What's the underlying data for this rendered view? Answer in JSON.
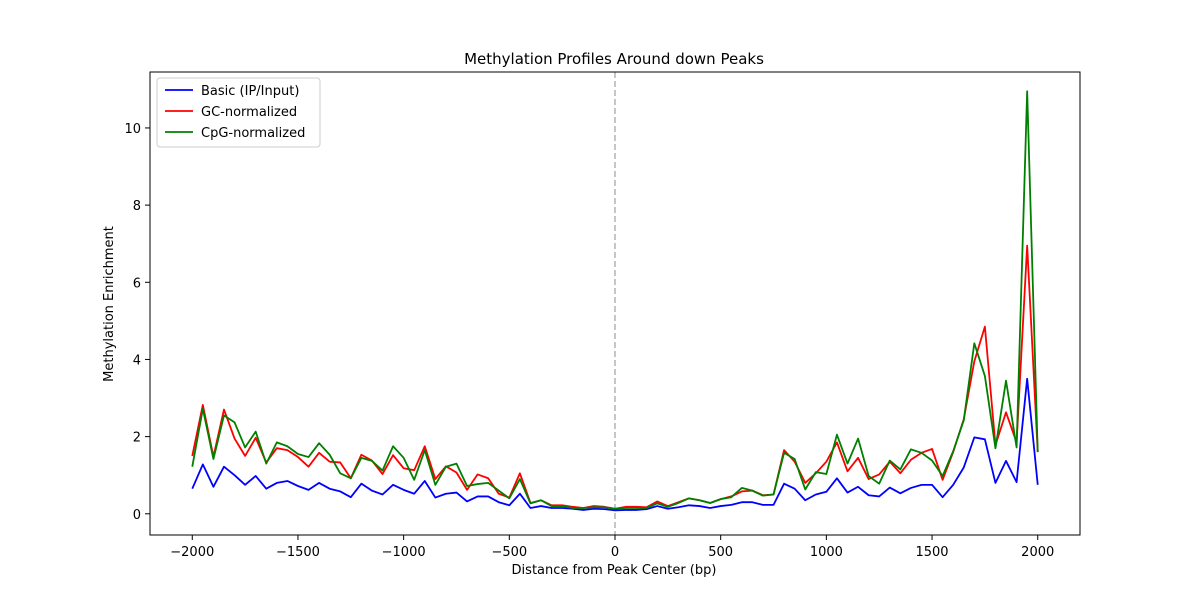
{
  "chart_data": {
    "type": "line",
    "title": "Methylation Profiles Around down Peaks",
    "xlabel": "Distance from Peak Center (bp)",
    "ylabel": "Methylation Enrichment",
    "xlim": [
      -2200,
      2200
    ],
    "ylim": [
      -0.55,
      11.45
    ],
    "xticks": [
      -2000,
      -1500,
      -1000,
      -500,
      0,
      500,
      1000,
      1500,
      2000
    ],
    "xtick_labels": [
      "−2000",
      "−1500",
      "−1000",
      "−500",
      "0",
      "500",
      "1000",
      "1500",
      "2000"
    ],
    "yticks": [
      0,
      2,
      4,
      6,
      8,
      10
    ],
    "ytick_labels": [
      "0",
      "2",
      "4",
      "6",
      "8",
      "10"
    ],
    "grid": false,
    "legend_position": "top-left",
    "center_line": {
      "x": 0,
      "color": "#b3b3b3",
      "style": "dashed"
    },
    "x": [
      -2000,
      -1950,
      -1900,
      -1850,
      -1800,
      -1750,
      -1700,
      -1650,
      -1600,
      -1550,
      -1500,
      -1450,
      -1400,
      -1350,
      -1300,
      -1250,
      -1200,
      -1150,
      -1100,
      -1050,
      -1000,
      -950,
      -900,
      -850,
      -800,
      -750,
      -700,
      -650,
      -600,
      -550,
      -500,
      -450,
      -400,
      -350,
      -300,
      -250,
      -200,
      -150,
      -100,
      -50,
      0,
      50,
      100,
      150,
      200,
      250,
      300,
      350,
      400,
      450,
      500,
      550,
      600,
      650,
      700,
      750,
      800,
      850,
      900,
      950,
      1000,
      1050,
      1100,
      1150,
      1200,
      1250,
      1300,
      1350,
      1400,
      1450,
      1500,
      1550,
      1600,
      1650,
      1700,
      1750,
      1800,
      1850,
      1900,
      1950,
      2000
    ],
    "series": [
      {
        "name": "Basic (IP/Input)",
        "color": "#0000ff",
        "values": [
          0.65,
          1.28,
          0.7,
          1.22,
          1.0,
          0.75,
          0.98,
          0.65,
          0.8,
          0.85,
          0.72,
          0.62,
          0.8,
          0.65,
          0.58,
          0.43,
          0.78,
          0.6,
          0.5,
          0.75,
          0.62,
          0.52,
          0.85,
          0.42,
          0.52,
          0.55,
          0.32,
          0.45,
          0.45,
          0.3,
          0.22,
          0.52,
          0.15,
          0.2,
          0.15,
          0.15,
          0.13,
          0.1,
          0.13,
          0.12,
          0.09,
          0.1,
          0.1,
          0.12,
          0.2,
          0.13,
          0.17,
          0.22,
          0.2,
          0.15,
          0.2,
          0.23,
          0.3,
          0.3,
          0.23,
          0.23,
          0.78,
          0.65,
          0.35,
          0.5,
          0.57,
          0.92,
          0.55,
          0.7,
          0.48,
          0.45,
          0.68,
          0.53,
          0.67,
          0.75,
          0.75,
          0.43,
          0.75,
          1.2,
          1.98,
          1.93,
          0.8,
          1.37,
          0.82,
          3.5,
          0.75
        ]
      },
      {
        "name": "GC-normalized",
        "color": "#ff0000",
        "values": [
          1.5,
          2.82,
          1.48,
          2.7,
          1.95,
          1.5,
          1.97,
          1.33,
          1.7,
          1.65,
          1.47,
          1.22,
          1.58,
          1.35,
          1.33,
          0.92,
          1.53,
          1.38,
          1.03,
          1.52,
          1.18,
          1.13,
          1.75,
          0.9,
          1.23,
          1.07,
          0.62,
          1.02,
          0.92,
          0.52,
          0.42,
          1.05,
          0.28,
          0.35,
          0.22,
          0.22,
          0.18,
          0.15,
          0.2,
          0.18,
          0.13,
          0.18,
          0.18,
          0.17,
          0.32,
          0.2,
          0.3,
          0.4,
          0.35,
          0.28,
          0.38,
          0.45,
          0.58,
          0.6,
          0.48,
          0.5,
          1.65,
          1.35,
          0.8,
          1.05,
          1.35,
          1.85,
          1.1,
          1.45,
          0.9,
          1.02,
          1.35,
          1.05,
          1.4,
          1.58,
          1.68,
          0.88,
          1.6,
          2.45,
          3.95,
          4.85,
          1.78,
          2.63,
          1.85,
          6.95,
          1.6
        ]
      },
      {
        "name": "CpG-normalized",
        "color": "#008000",
        "values": [
          1.22,
          2.72,
          1.42,
          2.55,
          2.37,
          1.72,
          2.13,
          1.3,
          1.85,
          1.75,
          1.55,
          1.47,
          1.83,
          1.53,
          1.05,
          0.92,
          1.45,
          1.37,
          1.12,
          1.75,
          1.45,
          0.88,
          1.65,
          0.75,
          1.22,
          1.3,
          0.72,
          0.77,
          0.8,
          0.6,
          0.4,
          0.9,
          0.27,
          0.35,
          0.2,
          0.2,
          0.15,
          0.15,
          0.17,
          0.17,
          0.13,
          0.15,
          0.15,
          0.15,
          0.27,
          0.18,
          0.28,
          0.4,
          0.35,
          0.28,
          0.38,
          0.43,
          0.67,
          0.6,
          0.47,
          0.5,
          1.58,
          1.42,
          0.63,
          1.08,
          1.03,
          2.05,
          1.3,
          1.95,
          0.98,
          0.78,
          1.38,
          1.15,
          1.67,
          1.58,
          1.38,
          0.98,
          1.62,
          2.42,
          4.42,
          3.57,
          1.7,
          3.45,
          1.72,
          10.95,
          1.6
        ]
      }
    ]
  }
}
